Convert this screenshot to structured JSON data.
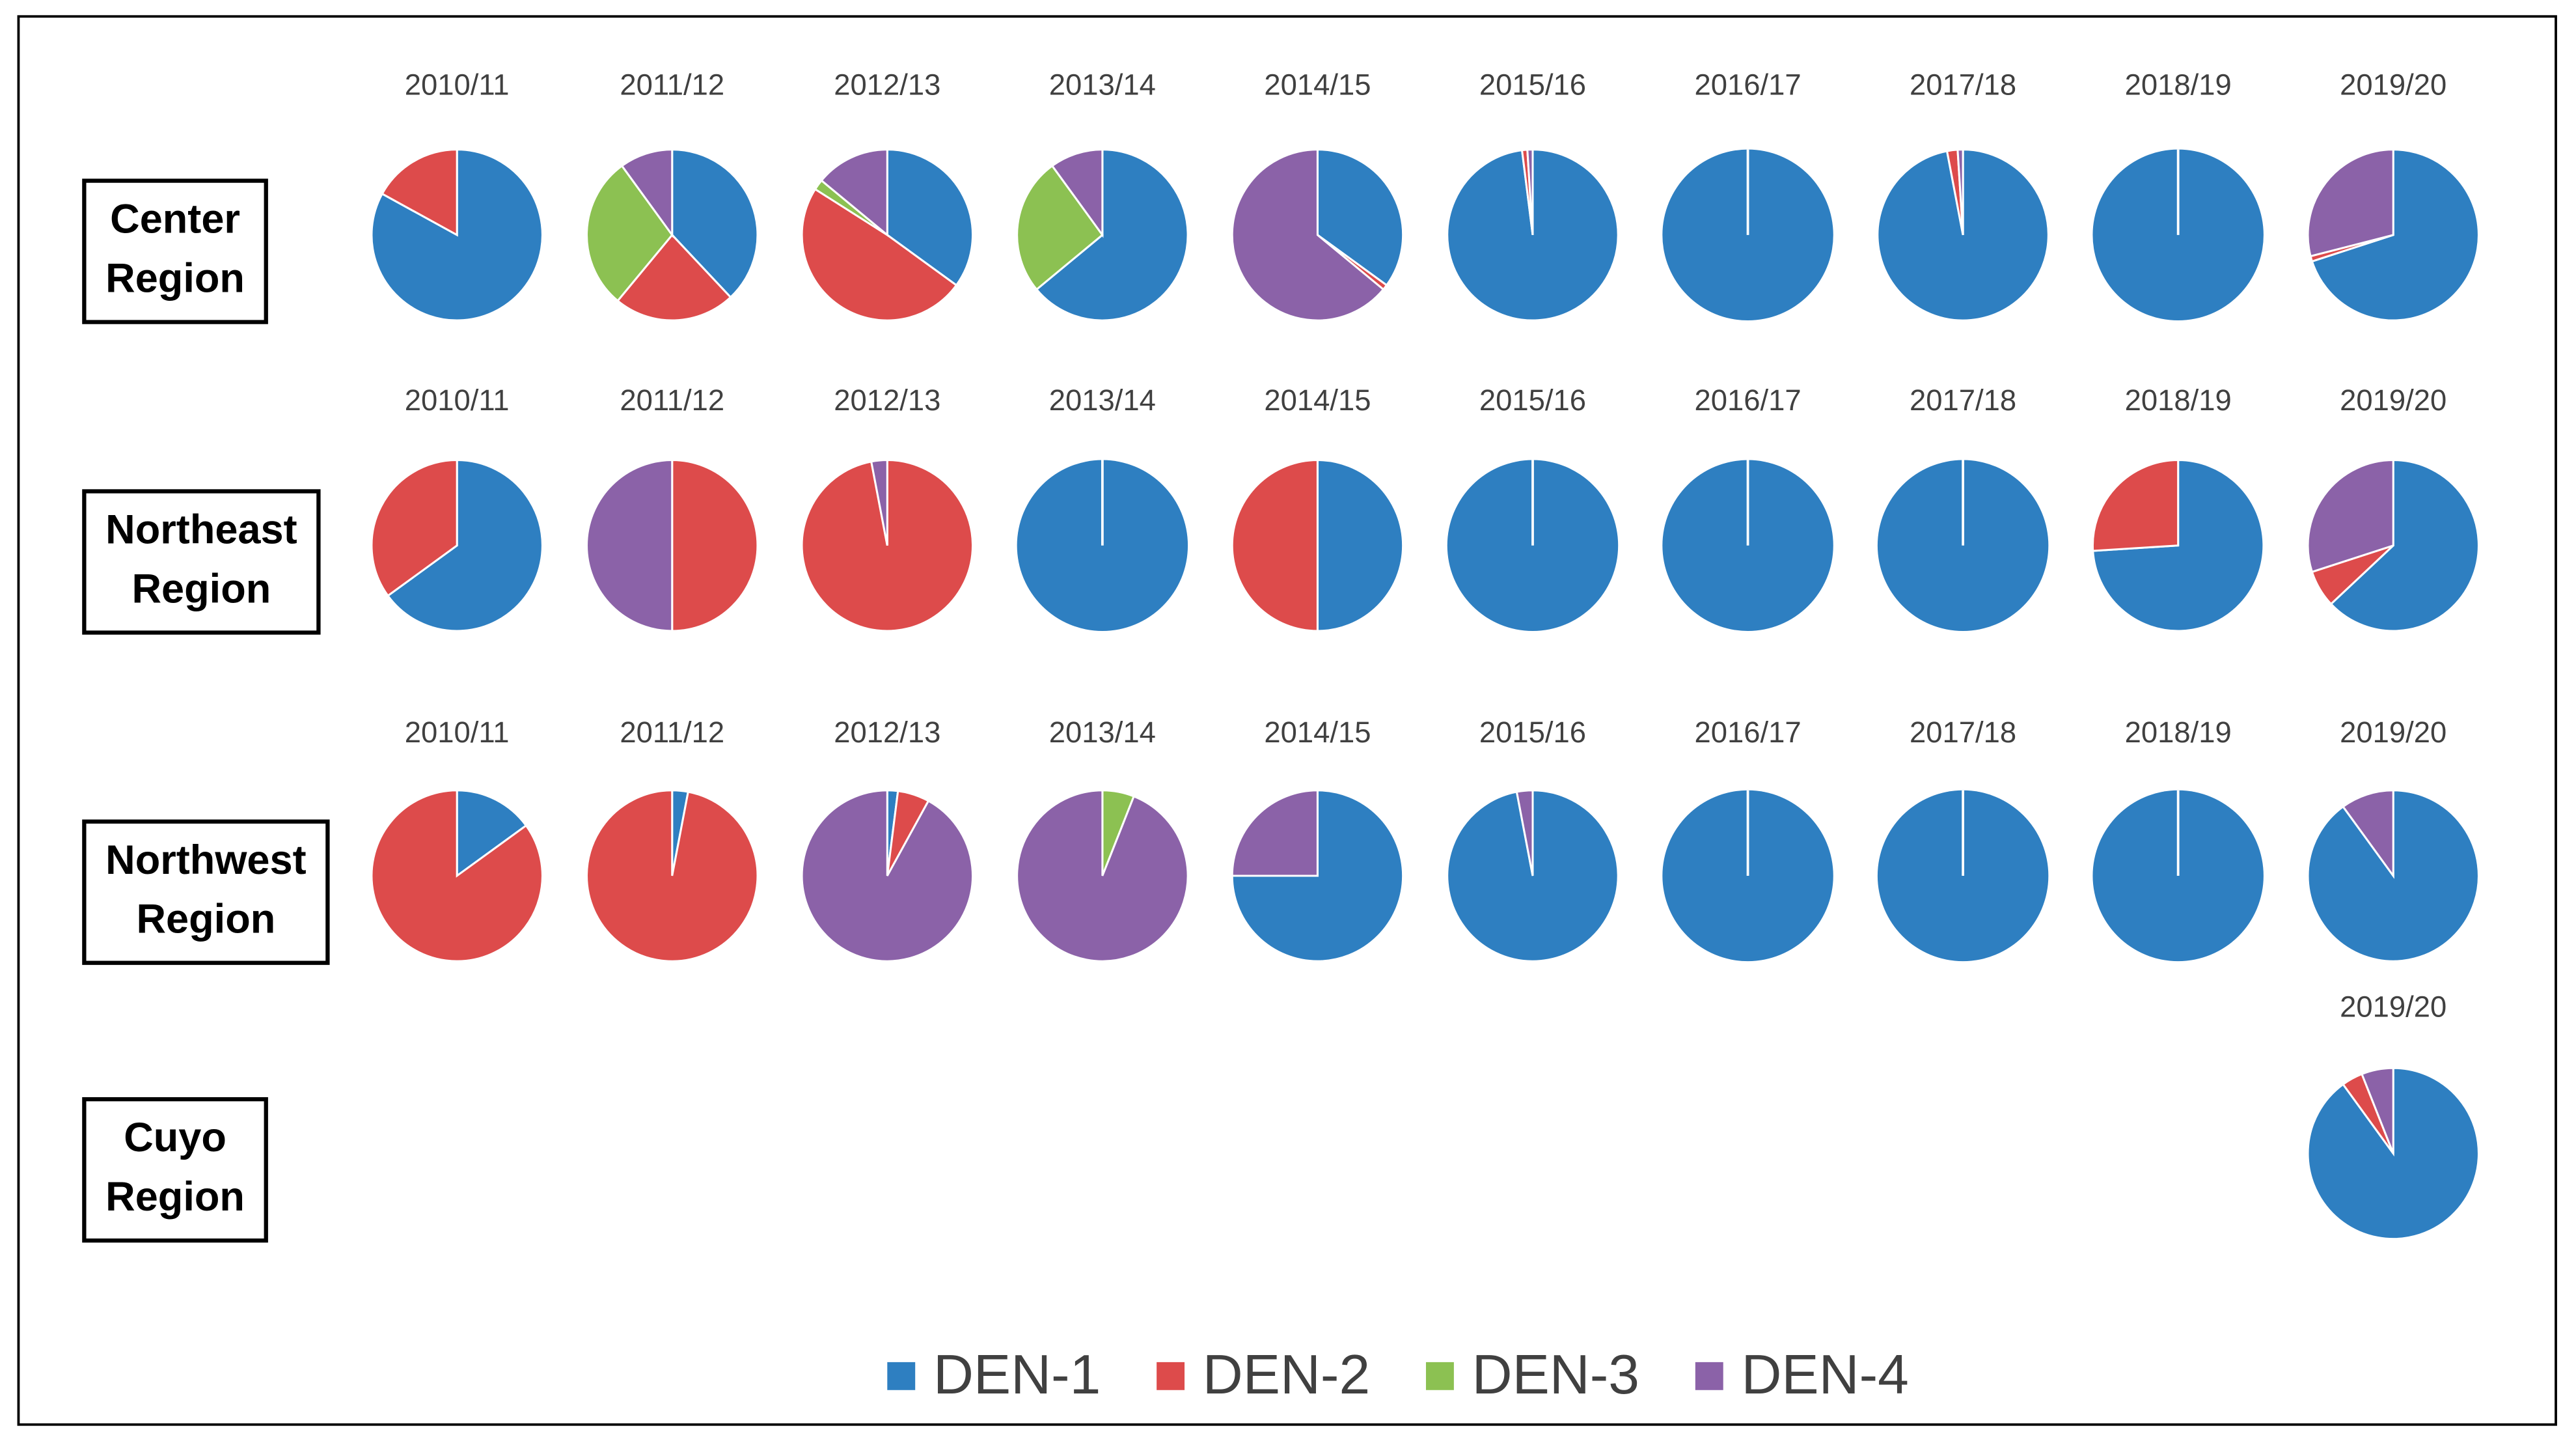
{
  "chart_data": {
    "type": "pie",
    "series": [
      {
        "name": "DEN-1",
        "color": "#2e7fc1"
      },
      {
        "name": "DEN-2",
        "color": "#dd4b4b"
      },
      {
        "name": "DEN-3",
        "color": "#8cc152"
      },
      {
        "name": "DEN-4",
        "color": "#8b62a8"
      }
    ],
    "regions": [
      {
        "name": [
          "Center",
          "Region"
        ],
        "charts": [
          {
            "label": "2010/11",
            "values": [
              83,
              17,
              0,
              0
            ]
          },
          {
            "label": "2011/12",
            "values": [
              38,
              23,
              29,
              10
            ]
          },
          {
            "label": "2012/13",
            "values": [
              35,
              49,
              2,
              14
            ]
          },
          {
            "label": "2013/14",
            "values": [
              64,
              0,
              26,
              10
            ]
          },
          {
            "label": "2014/15",
            "values": [
              35,
              1,
              0,
              64
            ]
          },
          {
            "label": "2015/16",
            "values": [
              98,
              1,
              0,
              1
            ]
          },
          {
            "label": "2016/17",
            "values": [
              100,
              0,
              0,
              0
            ]
          },
          {
            "label": "2017/18",
            "values": [
              97,
              2,
              0,
              1
            ]
          },
          {
            "label": "2018/19",
            "values": [
              100,
              0,
              0,
              0
            ]
          },
          {
            "label": "2019/20",
            "values": [
              70,
              1,
              0,
              29
            ]
          }
        ]
      },
      {
        "name": [
          "Northeast",
          "Region"
        ],
        "charts": [
          {
            "label": "2010/11",
            "values": [
              65,
              35,
              0,
              0
            ]
          },
          {
            "label": "2011/12",
            "values": [
              0,
              50,
              0,
              50
            ]
          },
          {
            "label": "2012/13",
            "values": [
              0,
              97,
              0,
              3
            ]
          },
          {
            "label": "2013/14",
            "values": [
              100,
              0,
              0,
              0
            ]
          },
          {
            "label": "2014/15",
            "values": [
              50,
              50,
              0,
              0
            ]
          },
          {
            "label": "2015/16",
            "values": [
              100,
              0,
              0,
              0
            ]
          },
          {
            "label": "2016/17",
            "values": [
              100,
              0,
              0,
              0
            ]
          },
          {
            "label": "2017/18",
            "values": [
              100,
              0,
              0,
              0
            ]
          },
          {
            "label": "2018/19",
            "values": [
              74,
              26,
              0,
              0
            ]
          },
          {
            "label": "2019/20",
            "values": [
              63,
              7,
              0,
              30
            ]
          }
        ]
      },
      {
        "name": [
          "Northwest",
          "Region"
        ],
        "charts": [
          {
            "label": "2010/11",
            "values": [
              15,
              85,
              0,
              0
            ]
          },
          {
            "label": "2011/12",
            "values": [
              3,
              97,
              0,
              0
            ]
          },
          {
            "label": "2012/13",
            "values": [
              2,
              6,
              0,
              92
            ]
          },
          {
            "label": "2013/14",
            "values": [
              0,
              0,
              6,
              94
            ]
          },
          {
            "label": "2014/15",
            "values": [
              75,
              0,
              0,
              25
            ]
          },
          {
            "label": "2015/16",
            "values": [
              97,
              0,
              0,
              3
            ]
          },
          {
            "label": "2016/17",
            "values": [
              100,
              0,
              0,
              0
            ]
          },
          {
            "label": "2017/18",
            "values": [
              100,
              0,
              0,
              0
            ]
          },
          {
            "label": "2018/19",
            "values": [
              100,
              0,
              0,
              0
            ]
          },
          {
            "label": "2019/20",
            "values": [
              90,
              0,
              0,
              10
            ]
          }
        ]
      },
      {
        "name": [
          "Cuyo",
          "Region"
        ],
        "charts": [
          null,
          null,
          null,
          null,
          null,
          null,
          null,
          null,
          null,
          {
            "label": "2019/20",
            "values": [
              90,
              4,
              0,
              6
            ]
          }
        ]
      }
    ]
  }
}
